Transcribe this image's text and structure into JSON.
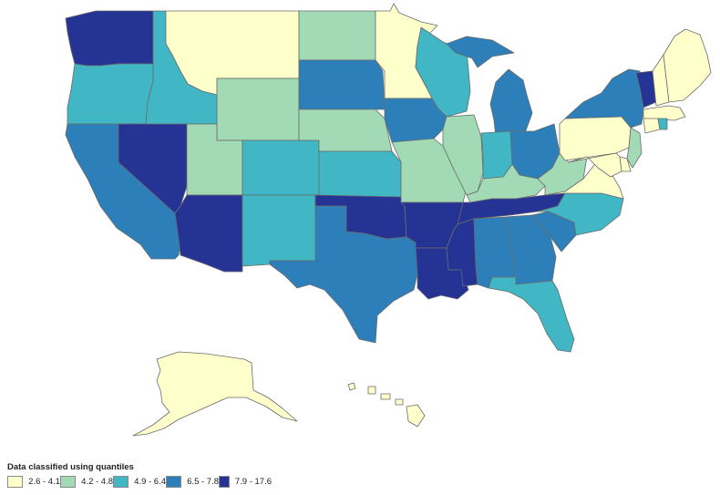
{
  "legend": {
    "title": "Data classified using quantiles",
    "classes": [
      {
        "label": "2.6 - 4.1",
        "color": "#ffffcc"
      },
      {
        "label": "4.2 - 4.8",
        "color": "#a1dab4"
      },
      {
        "label": "4.9 - 6.4",
        "color": "#41b6c4"
      },
      {
        "label": "6.5 - 7.8",
        "color": "#2c7fb8"
      },
      {
        "label": "7.9 - 17.6",
        "color": "#253494"
      }
    ]
  },
  "states": [
    {
      "name": "Washington",
      "cls": 4
    },
    {
      "name": "Oregon",
      "cls": 2
    },
    {
      "name": "California",
      "cls": 3
    },
    {
      "name": "Nevada",
      "cls": 4
    },
    {
      "name": "Idaho",
      "cls": 2
    },
    {
      "name": "Montana",
      "cls": 0
    },
    {
      "name": "Wyoming",
      "cls": 1
    },
    {
      "name": "Utah",
      "cls": 1
    },
    {
      "name": "Arizona",
      "cls": 4
    },
    {
      "name": "Colorado",
      "cls": 2
    },
    {
      "name": "New Mexico",
      "cls": 2
    },
    {
      "name": "North Dakota",
      "cls": 1
    },
    {
      "name": "South Dakota",
      "cls": 3
    },
    {
      "name": "Nebraska",
      "cls": 1
    },
    {
      "name": "Kansas",
      "cls": 2
    },
    {
      "name": "Oklahoma",
      "cls": 4
    },
    {
      "name": "Texas",
      "cls": 3
    },
    {
      "name": "Minnesota",
      "cls": 0
    },
    {
      "name": "Iowa",
      "cls": 3
    },
    {
      "name": "Missouri",
      "cls": 1
    },
    {
      "name": "Arkansas",
      "cls": 4
    },
    {
      "name": "Louisiana",
      "cls": 4
    },
    {
      "name": "Wisconsin",
      "cls": 2
    },
    {
      "name": "Illinois",
      "cls": 1
    },
    {
      "name": "Michigan",
      "cls": 3
    },
    {
      "name": "Indiana",
      "cls": 2
    },
    {
      "name": "Ohio",
      "cls": 3
    },
    {
      "name": "Kentucky",
      "cls": 1
    },
    {
      "name": "Tennessee",
      "cls": 4
    },
    {
      "name": "Mississippi",
      "cls": 4
    },
    {
      "name": "Alabama",
      "cls": 3
    },
    {
      "name": "Georgia",
      "cls": 3
    },
    {
      "name": "Florida",
      "cls": 2
    },
    {
      "name": "South Carolina",
      "cls": 3
    },
    {
      "name": "North Carolina",
      "cls": 2
    },
    {
      "name": "Virginia",
      "cls": 0
    },
    {
      "name": "West Virginia",
      "cls": 1
    },
    {
      "name": "Pennsylvania",
      "cls": 0
    },
    {
      "name": "New York",
      "cls": 3
    },
    {
      "name": "Vermont",
      "cls": 4
    },
    {
      "name": "New Hampshire",
      "cls": 0
    },
    {
      "name": "Maine",
      "cls": 0
    },
    {
      "name": "Massachusetts",
      "cls": 0
    },
    {
      "name": "Connecticut",
      "cls": 0
    },
    {
      "name": "Rhode Island",
      "cls": 2
    },
    {
      "name": "New Jersey",
      "cls": 1
    },
    {
      "name": "Delaware",
      "cls": 0
    },
    {
      "name": "Maryland",
      "cls": 0
    },
    {
      "name": "Alaska",
      "cls": 0
    },
    {
      "name": "Hawaii",
      "cls": 0
    }
  ]
}
